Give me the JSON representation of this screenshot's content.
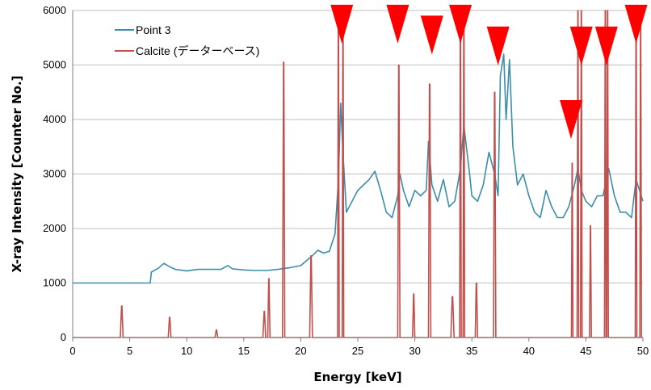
{
  "chart_data": {
    "type": "line",
    "xlabel": "Energy [keV]",
    "ylabel": "X-ray Intensity [Counter No.]",
    "xlim": [
      0,
      50
    ],
    "ylim": [
      0,
      6000
    ],
    "xticks": [
      0,
      5,
      10,
      15,
      20,
      25,
      30,
      35,
      40,
      45,
      50
    ],
    "yticks": [
      0,
      1000,
      2000,
      3000,
      4000,
      5000,
      6000
    ],
    "grid": "horizontal",
    "legend_position": "top-left",
    "series": [
      {
        "name": "Point 3",
        "color": "#3a8ea8",
        "x": [
          0,
          6.8,
          6.9,
          7.5,
          8,
          8.5,
          9,
          10,
          11,
          12,
          13,
          13.6,
          14,
          15,
          16,
          17,
          17.5,
          18,
          19,
          20,
          21,
          21.5,
          22,
          22.5,
          23,
          23.3,
          23.5,
          23.7,
          24,
          24.5,
          25,
          25.5,
          26,
          26.5,
          27,
          27.5,
          28,
          28.5,
          28.7,
          29,
          29.5,
          30,
          30.5,
          31,
          31.2,
          31.5,
          32,
          32.5,
          33,
          33.5,
          34,
          34.3,
          34.8,
          35,
          35.5,
          36,
          36.5,
          37,
          37.3,
          37.5,
          37.8,
          38,
          38.3,
          38.6,
          39,
          39.5,
          40,
          40.5,
          41,
          41.5,
          42,
          42.5,
          43,
          43.5,
          44,
          44.3,
          44.6,
          45,
          45.5,
          46,
          46.5,
          46.8,
          47,
          47.5,
          48,
          48.5,
          49,
          49.4,
          49.7,
          50
        ],
        "values": [
          1000,
          1000,
          1200,
          1270,
          1360,
          1300,
          1250,
          1220,
          1250,
          1250,
          1250,
          1320,
          1260,
          1240,
          1230,
          1230,
          1240,
          1250,
          1280,
          1320,
          1500,
          1600,
          1550,
          1580,
          1900,
          2900,
          4300,
          3400,
          2300,
          2500,
          2700,
          2800,
          2900,
          3050,
          2700,
          2300,
          2200,
          2600,
          3000,
          2700,
          2400,
          2700,
          2600,
          2700,
          3600,
          2800,
          2500,
          2900,
          2400,
          2500,
          3100,
          3900,
          3000,
          2600,
          2500,
          2800,
          3400,
          3000,
          2600,
          4800,
          5200,
          4000,
          5100,
          3500,
          2800,
          3000,
          2600,
          2300,
          2200,
          2700,
          2400,
          2200,
          2200,
          2400,
          2800,
          3100,
          2700,
          2500,
          2400,
          2600,
          2600,
          2900,
          3100,
          2600,
          2300,
          2300,
          2200,
          2900,
          2700,
          2500
        ]
      },
      {
        "name": "Calcite",
        "name_suffix": "(データーベース)",
        "color": "#c0504d",
        "baseline": 0,
        "peaks": [
          {
            "x": 4.3,
            "h": 580,
            "w": 0.12
          },
          {
            "x": 8.5,
            "h": 370,
            "w": 0.12
          },
          {
            "x": 12.6,
            "h": 140,
            "w": 0.12
          },
          {
            "x": 16.8,
            "h": 480,
            "w": 0.12
          },
          {
            "x": 17.2,
            "h": 1080,
            "w": 0.1
          },
          {
            "x": 18.5,
            "h": 5050,
            "w": 0.1
          },
          {
            "x": 20.9,
            "h": 1500,
            "w": 0.12
          },
          {
            "x": 23.3,
            "h": 6000,
            "w": 0.07
          },
          {
            "x": 23.7,
            "h": 6000,
            "w": 0.07
          },
          {
            "x": 28.6,
            "h": 5000,
            "w": 0.1
          },
          {
            "x": 29.9,
            "h": 800,
            "w": 0.1
          },
          {
            "x": 31.3,
            "h": 4650,
            "w": 0.1
          },
          {
            "x": 33.3,
            "h": 750,
            "w": 0.14
          },
          {
            "x": 34.0,
            "h": 6000,
            "w": 0.07
          },
          {
            "x": 34.3,
            "h": 6000,
            "w": 0.07
          },
          {
            "x": 35.4,
            "h": 1000,
            "w": 0.1
          },
          {
            "x": 37.0,
            "h": 4500,
            "w": 0.1
          },
          {
            "x": 43.8,
            "h": 3200,
            "w": 0.07
          },
          {
            "x": 44.3,
            "h": 6000,
            "w": 0.07
          },
          {
            "x": 44.6,
            "h": 6000,
            "w": 0.07
          },
          {
            "x": 45.4,
            "h": 2050,
            "w": 0.08
          },
          {
            "x": 46.7,
            "h": 6000,
            "w": 0.07
          },
          {
            "x": 46.9,
            "h": 6000,
            "w": 0.07
          },
          {
            "x": 49.4,
            "h": 6000,
            "w": 0.07
          },
          {
            "x": 49.8,
            "h": 6000,
            "w": 0.07
          }
        ]
      }
    ],
    "markers": {
      "shape": "triangle-down",
      "color": "#ff0000",
      "points": [
        {
          "x": 23.6,
          "y": 5750
        },
        {
          "x": 28.5,
          "y": 5750
        },
        {
          "x": 31.5,
          "y": 5550
        },
        {
          "x": 34.0,
          "y": 5750
        },
        {
          "x": 37.3,
          "y": 5350
        },
        {
          "x": 43.7,
          "y": 4000
        },
        {
          "x": 44.6,
          "y": 5350
        },
        {
          "x": 46.8,
          "y": 5350
        },
        {
          "x": 49.4,
          "y": 5750
        }
      ]
    }
  }
}
